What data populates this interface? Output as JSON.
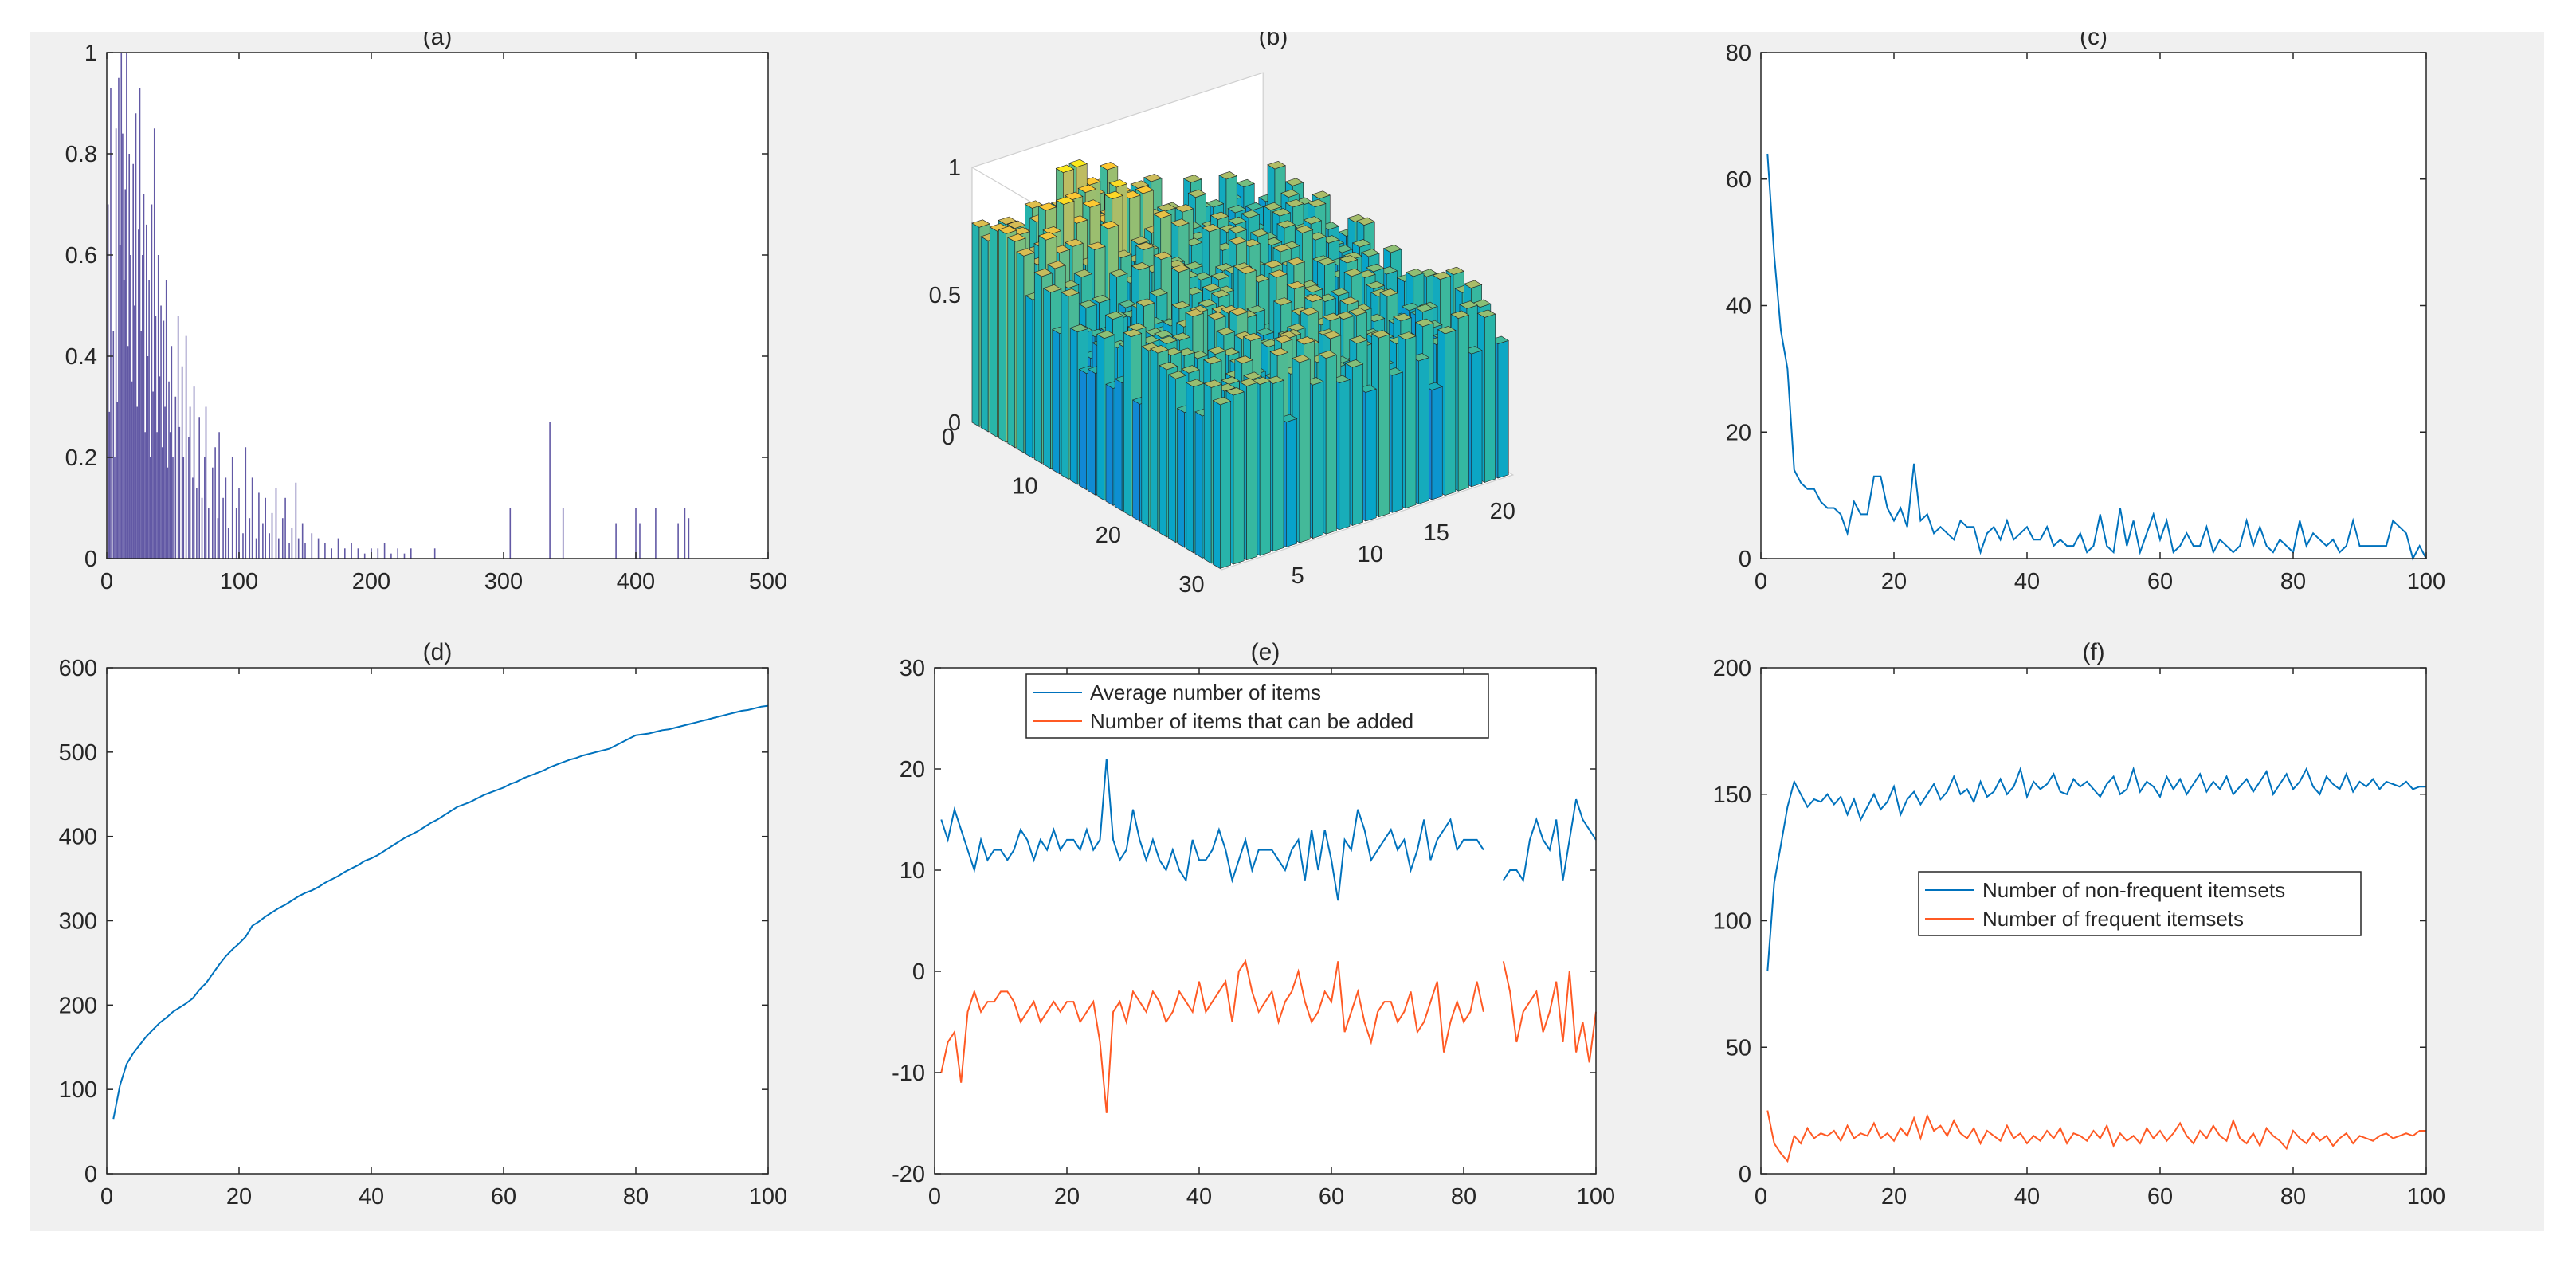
{
  "figure": {
    "background": "#f0f0f0",
    "axes_color": "#262626",
    "blue": "#0072bd",
    "orange": "#ff5a24",
    "bar_color": "#3b2f8f"
  },
  "chart_data": [
    {
      "id": "a",
      "type": "bar",
      "title": "(a)",
      "xlim": [
        0,
        500
      ],
      "ylim": [
        0,
        1
      ],
      "xticks": [
        "0",
        "100",
        "200",
        "300",
        "400",
        "500"
      ],
      "yticks": [
        "0",
        "0.2",
        "0.4",
        "0.6",
        "0.8",
        "1"
      ],
      "x": [
        1,
        2,
        3,
        5,
        6,
        7,
        8,
        9,
        10,
        11,
        12,
        13,
        14,
        15,
        16,
        17,
        18,
        19,
        20,
        21,
        22,
        23,
        24,
        25,
        26,
        27,
        28,
        29,
        30,
        31,
        32,
        33,
        34,
        35,
        36,
        37,
        38,
        39,
        40,
        41,
        42,
        43,
        44,
        45,
        46,
        47,
        48,
        49,
        50,
        52,
        54,
        55,
        57,
        58,
        60,
        62,
        63,
        65,
        66,
        68,
        70,
        72,
        74,
        75,
        77,
        80,
        82,
        84,
        85,
        88,
        90,
        92,
        95,
        98,
        100,
        103,
        105,
        108,
        110,
        113,
        115,
        118,
        120,
        123,
        125,
        128,
        130,
        133,
        135,
        138,
        140,
        143,
        145,
        148,
        150,
        155,
        160,
        165,
        170,
        175,
        180,
        185,
        190,
        195,
        200,
        205,
        210,
        215,
        220,
        225,
        230,
        248,
        305,
        335,
        345,
        385,
        400,
        403,
        415,
        432,
        437,
        440
      ],
      "values": [
        0.7,
        0.29,
        0.93,
        0.45,
        0.2,
        0.85,
        0.31,
        0.95,
        0.62,
        1.0,
        0.84,
        0.55,
        0.73,
        1.0,
        0.42,
        0.8,
        0.6,
        0.35,
        0.78,
        0.5,
        0.88,
        0.3,
        0.65,
        0.93,
        0.45,
        0.6,
        0.72,
        0.25,
        0.66,
        0.4,
        0.55,
        0.2,
        0.7,
        0.33,
        0.85,
        0.48,
        0.25,
        0.6,
        0.36,
        0.5,
        0.22,
        0.47,
        0.3,
        0.55,
        0.18,
        0.35,
        0.25,
        0.42,
        0.2,
        0.32,
        0.48,
        0.26,
        0.38,
        0.2,
        0.44,
        0.24,
        0.3,
        0.16,
        0.34,
        0.14,
        0.28,
        0.12,
        0.2,
        0.3,
        0.1,
        0.18,
        0.22,
        0.08,
        0.25,
        0.12,
        0.16,
        0.06,
        0.2,
        0.1,
        0.14,
        0.05,
        0.22,
        0.08,
        0.16,
        0.04,
        0.13,
        0.07,
        0.12,
        0.05,
        0.09,
        0.14,
        0.04,
        0.08,
        0.12,
        0.03,
        0.06,
        0.15,
        0.04,
        0.07,
        0.03,
        0.05,
        0.04,
        0.03,
        0.02,
        0.04,
        0.02,
        0.03,
        0.02,
        0.01,
        0.02,
        0.02,
        0.03,
        0.01,
        0.02,
        0.01,
        0.02,
        0.02,
        0.1,
        0.27,
        0.1,
        0.07,
        0.1,
        0.07,
        0.1,
        0.07,
        0.1,
        0.08
      ]
    },
    {
      "id": "b",
      "type": "bar3d",
      "title": "(b)",
      "zlim": [
        0,
        1
      ],
      "zticks": [
        "0",
        "0.5",
        "1"
      ],
      "rows_ticks": [
        "0",
        "10",
        "20",
        "30"
      ],
      "cols_ticks": [
        "5",
        "10",
        "15",
        "20"
      ],
      "colormap": "parula",
      "rows": 28,
      "cols": 22
    },
    {
      "id": "c",
      "type": "line",
      "title": "(c)",
      "xlim": [
        0,
        100
      ],
      "ylim": [
        0,
        80
      ],
      "xticks": [
        "0",
        "20",
        "40",
        "60",
        "80",
        "100"
      ],
      "yticks": [
        "0",
        "20",
        "40",
        "60",
        "80"
      ],
      "series": [
        {
          "name": "c",
          "color": "#0072bd",
          "values": [
            64,
            48,
            36,
            30,
            14,
            12,
            11,
            11,
            9,
            8,
            8,
            7,
            4,
            9,
            7,
            7,
            13,
            13,
            8,
            6,
            8,
            5,
            15,
            6,
            7,
            4,
            5,
            4,
            3,
            6,
            5,
            5,
            1,
            4,
            5,
            3,
            6,
            3,
            4,
            5,
            3,
            3,
            5,
            2,
            3,
            2,
            2,
            4,
            1,
            2,
            7,
            2,
            1,
            8,
            2,
            6,
            1,
            4,
            7,
            3,
            6,
            1,
            2,
            4,
            2,
            2,
            5,
            1,
            3,
            2,
            1,
            2,
            6,
            2,
            5,
            2,
            1,
            3,
            2,
            1,
            6,
            2,
            4,
            3,
            2,
            3,
            1,
            2,
            6,
            2,
            2,
            2,
            2,
            2,
            6,
            5,
            4,
            0,
            2,
            0
          ]
        }
      ]
    },
    {
      "id": "d",
      "type": "line",
      "title": "(d)",
      "xlim": [
        0,
        100
      ],
      "ylim": [
        0,
        600
      ],
      "xticks": [
        "0",
        "20",
        "40",
        "60",
        "80",
        "100"
      ],
      "yticks": [
        "0",
        "100",
        "200",
        "300",
        "400",
        "500",
        "600"
      ],
      "series": [
        {
          "name": "d",
          "color": "#0072bd",
          "values": [
            65,
            105,
            130,
            143,
            153,
            163,
            171,
            179,
            185,
            192,
            197,
            202,
            208,
            218,
            226,
            237,
            248,
            258,
            266,
            273,
            281,
            294,
            299,
            305,
            310,
            315,
            319,
            324,
            329,
            333,
            336,
            340,
            345,
            349,
            353,
            358,
            362,
            366,
            371,
            374,
            378,
            383,
            388,
            393,
            398,
            402,
            406,
            411,
            416,
            420,
            425,
            430,
            435,
            438,
            441,
            445,
            449,
            452,
            455,
            458,
            462,
            465,
            469,
            472,
            475,
            478,
            482,
            485,
            488,
            491,
            493,
            496,
            498,
            500,
            502,
            504,
            508,
            512,
            516,
            520,
            521,
            522,
            524,
            526,
            527,
            529,
            531,
            533,
            535,
            537,
            539,
            541,
            543,
            545,
            547,
            549,
            550,
            552,
            554,
            555
          ]
        }
      ]
    },
    {
      "id": "e",
      "type": "line",
      "title": "(e)",
      "xlim": [
        0,
        100
      ],
      "ylim": [
        -20,
        30
      ],
      "xticks": [
        "0",
        "20",
        "40",
        "60",
        "80",
        "100"
      ],
      "yticks": [
        "-20",
        "-10",
        "0",
        "10",
        "20",
        "30"
      ],
      "legend": {
        "position": "top",
        "entries": [
          "Average number of items",
          "Number of items that can be added"
        ]
      },
      "series": [
        {
          "name": "Average number of items",
          "color": "#0072bd",
          "values": [
            15,
            13,
            16,
            14,
            12,
            10,
            13,
            11,
            12,
            12,
            11,
            12,
            14,
            13,
            11,
            13,
            12,
            14,
            12,
            13,
            13,
            12,
            14,
            12,
            13,
            21,
            13,
            11,
            12,
            16,
            13,
            11,
            13,
            11,
            10,
            12,
            10,
            9,
            13,
            11,
            11,
            12,
            14,
            12,
            9,
            11,
            13,
            10,
            12,
            12,
            12,
            11,
            10,
            12,
            13,
            9,
            14,
            10,
            14,
            11,
            7,
            13,
            12,
            16,
            14,
            11,
            12,
            13,
            14,
            12,
            13,
            10,
            12,
            15,
            11,
            13,
            14,
            15,
            12,
            13,
            13,
            13,
            12,
            null,
            null,
            9,
            10,
            10,
            9,
            13,
            15,
            13,
            12,
            15,
            9,
            13,
            17,
            15,
            14,
            13
          ]
        },
        {
          "name": "Number of items that can be added",
          "color": "#ff5a24",
          "values": [
            -10,
            -7,
            -6,
            -11,
            -4,
            -2,
            -4,
            -3,
            -3,
            -2,
            -2,
            -3,
            -5,
            -4,
            -3,
            -5,
            -4,
            -3,
            -4,
            -3,
            -3,
            -5,
            -4,
            -3,
            -7,
            -14,
            -4,
            -3,
            -5,
            -2,
            -3,
            -4,
            -2,
            -3,
            -5,
            -4,
            -2,
            -3,
            -4,
            -1,
            -4,
            -3,
            -2,
            -1,
            -5,
            0,
            1,
            -2,
            -4,
            -3,
            -2,
            -5,
            -3,
            -2,
            0,
            -3,
            -5,
            -4,
            -2,
            -3,
            1,
            -6,
            -4,
            -2,
            -5,
            -7,
            -4,
            -3,
            -3,
            -5,
            -4,
            -2,
            -6,
            -5,
            -3,
            -1,
            -8,
            -5,
            -3,
            -5,
            -4,
            -1,
            -4,
            null,
            null,
            1,
            -2,
            -7,
            -4,
            -3,
            -2,
            -6,
            -4,
            -1,
            -7,
            0,
            -8,
            -5,
            -9,
            -4
          ]
        }
      ]
    },
    {
      "id": "f",
      "type": "line",
      "title": "(f)",
      "xlim": [
        0,
        100
      ],
      "ylim": [
        0,
        200
      ],
      "xticks": [
        "0",
        "20",
        "40",
        "60",
        "80",
        "100"
      ],
      "yticks": [
        "0",
        "50",
        "100",
        "150",
        "200"
      ],
      "legend": {
        "position": "center",
        "entries": [
          "Number of non-frequent itemsets",
          "Number of frequent itemsets"
        ]
      },
      "series": [
        {
          "name": "Number of non-frequent itemsets",
          "color": "#0072bd",
          "values": [
            80,
            115,
            130,
            145,
            155,
            150,
            145,
            148,
            147,
            150,
            146,
            149,
            142,
            148,
            140,
            145,
            150,
            144,
            147,
            153,
            142,
            148,
            151,
            146,
            150,
            154,
            148,
            151,
            157,
            150,
            152,
            147,
            155,
            149,
            151,
            156,
            150,
            153,
            160,
            149,
            155,
            152,
            154,
            158,
            151,
            150,
            156,
            153,
            155,
            152,
            149,
            154,
            157,
            150,
            152,
            160,
            151,
            155,
            153,
            149,
            157,
            152,
            156,
            150,
            154,
            158,
            151,
            155,
            152,
            157,
            150,
            153,
            156,
            151,
            155,
            159,
            150,
            154,
            158,
            152,
            155,
            160,
            153,
            150,
            157,
            154,
            152,
            158,
            151,
            155,
            153,
            156,
            152,
            155,
            154,
            153,
            155,
            152,
            153,
            153
          ]
        },
        {
          "name": "Number of frequent itemsets",
          "color": "#ff5a24",
          "values": [
            25,
            12,
            8,
            5,
            15,
            12,
            18,
            14,
            16,
            15,
            17,
            13,
            19,
            14,
            16,
            15,
            20,
            14,
            16,
            13,
            18,
            15,
            22,
            14,
            23,
            17,
            19,
            15,
            21,
            16,
            14,
            18,
            12,
            17,
            15,
            13,
            19,
            14,
            16,
            12,
            15,
            13,
            17,
            14,
            18,
            12,
            16,
            15,
            13,
            17,
            14,
            19,
            11,
            16,
            13,
            15,
            12,
            18,
            14,
            17,
            13,
            16,
            20,
            15,
            12,
            17,
            14,
            19,
            15,
            13,
            21,
            14,
            12,
            16,
            11,
            18,
            15,
            13,
            10,
            17,
            14,
            12,
            16,
            13,
            15,
            11,
            14,
            16,
            12,
            15,
            14,
            13,
            15,
            16,
            14,
            15,
            16,
            15,
            17,
            17
          ]
        }
      ]
    }
  ]
}
